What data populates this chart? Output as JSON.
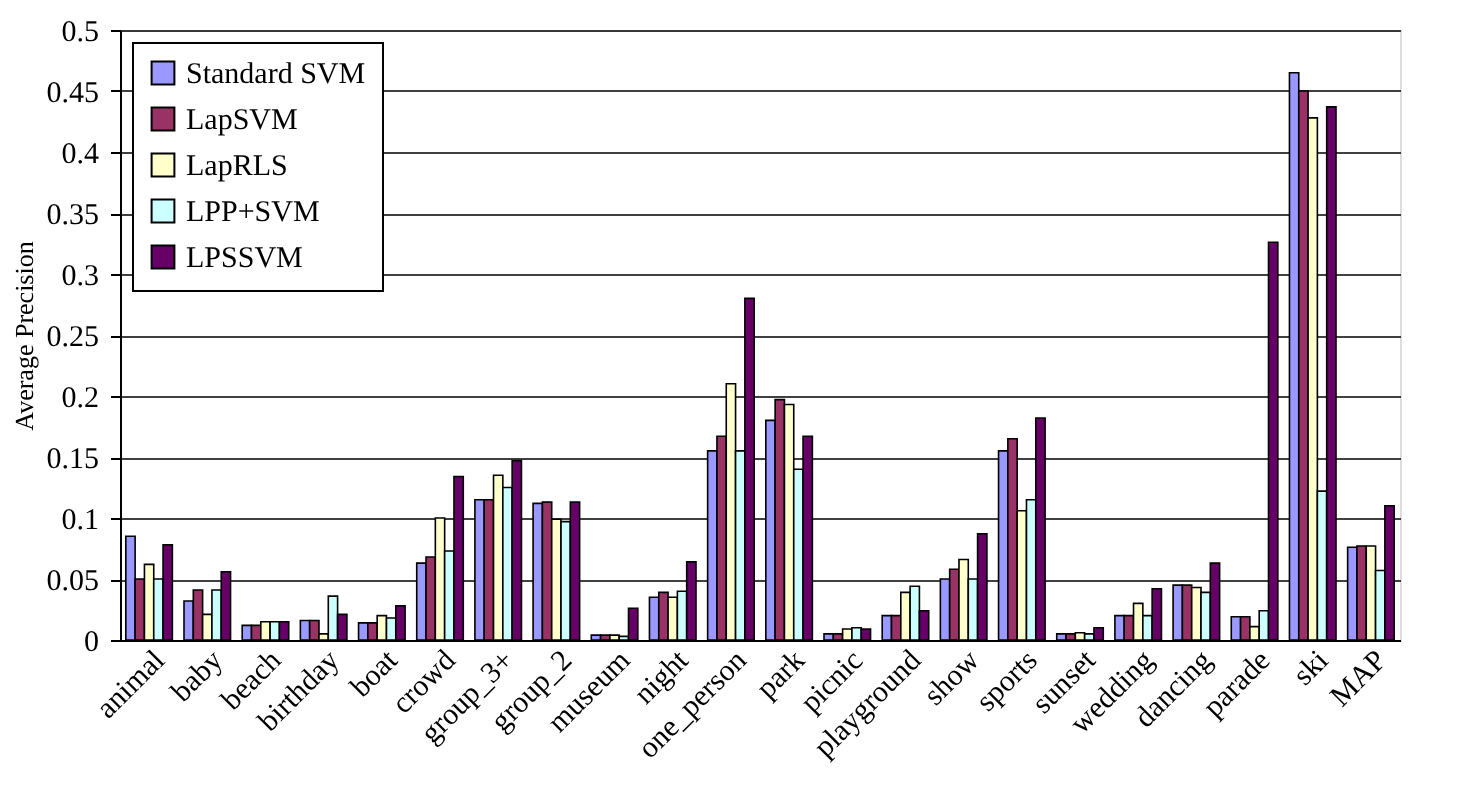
{
  "chart_data": {
    "type": "bar",
    "ylabel": "Average Precision",
    "categories": [
      "animal",
      "baby",
      "beach",
      "birthday",
      "boat",
      "crowd",
      "group_3+",
      "group_2",
      "museum",
      "night",
      "one_person",
      "park",
      "picnic",
      "playground",
      "show",
      "sports",
      "sunset",
      "wedding",
      "dancing",
      "parade",
      "ski",
      "MAP"
    ],
    "series": [
      {
        "name": "Standard SVM",
        "color": "#9999ff",
        "values": [
          0.085,
          0.032,
          0.012,
          0.016,
          0.014,
          0.063,
          0.115,
          0.112,
          0.004,
          0.035,
          0.155,
          0.18,
          0.005,
          0.02,
          0.05,
          0.155,
          0.005,
          0.02,
          0.045,
          0.019,
          0.465,
          0.076
        ]
      },
      {
        "name": "LapSVM",
        "color": "#993366",
        "values": [
          0.05,
          0.041,
          0.012,
          0.016,
          0.014,
          0.068,
          0.115,
          0.113,
          0.004,
          0.039,
          0.167,
          0.197,
          0.005,
          0.02,
          0.058,
          0.165,
          0.005,
          0.02,
          0.045,
          0.019,
          0.45,
          0.077
        ]
      },
      {
        "name": "LapRLS",
        "color": "#ffffcc",
        "values": [
          0.062,
          0.021,
          0.015,
          0.005,
          0.02,
          0.1,
          0.135,
          0.099,
          0.004,
          0.035,
          0.21,
          0.193,
          0.009,
          0.039,
          0.066,
          0.106,
          0.006,
          0.03,
          0.043,
          0.011,
          0.428,
          0.077
        ]
      },
      {
        "name": "LPP+SVM",
        "color": "#ccffff",
        "values": [
          0.05,
          0.041,
          0.015,
          0.036,
          0.018,
          0.073,
          0.125,
          0.097,
          0.003,
          0.04,
          0.155,
          0.14,
          0.01,
          0.044,
          0.05,
          0.115,
          0.005,
          0.02,
          0.039,
          0.024,
          0.122,
          0.057
        ]
      },
      {
        "name": "LPSSVM",
        "color": "#660066",
        "values": [
          0.078,
          0.056,
          0.015,
          0.021,
          0.028,
          0.134,
          0.147,
          0.113,
          0.026,
          0.064,
          0.28,
          0.167,
          0.009,
          0.024,
          0.087,
          0.182,
          0.01,
          0.042,
          0.063,
          0.326,
          0.437,
          0.11
        ]
      }
    ],
    "ylim": [
      0,
      0.5
    ],
    "yticks": [
      0,
      0.05,
      0.1,
      0.15,
      0.2,
      0.25,
      0.3,
      0.35,
      0.4,
      0.45,
      0.5
    ],
    "grid": "y",
    "legend": "top left"
  }
}
